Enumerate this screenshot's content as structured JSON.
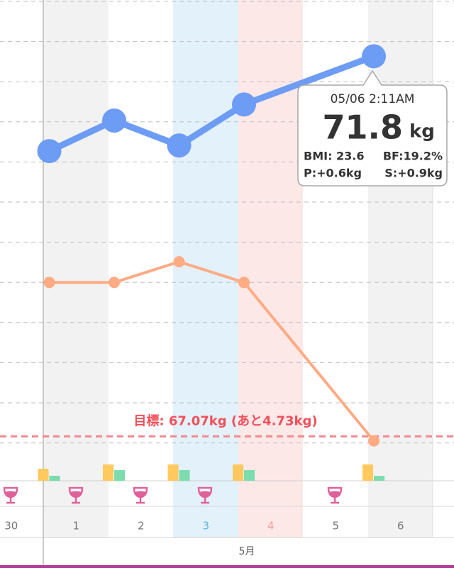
{
  "chart_data": {
    "type": "line",
    "categories": [
      "30",
      "1",
      "2",
      "3",
      "4",
      "5",
      "6"
    ],
    "month_label": "5月",
    "ylim": [
      66.5,
      72.5
    ],
    "y2lim": [
      18.6,
      25.6
    ],
    "bar_ylim": [
      0,
      30
    ],
    "series": [
      {
        "name": "weight",
        "color": "#6d9cf4",
        "x": [
          "1",
          "2",
          "3",
          "4",
          "6"
        ],
        "values": [
          70.62,
          71.0,
          70.69,
          71.2,
          71.8
        ]
      },
      {
        "name": "body fat",
        "color": "#ffab84",
        "axis": "y2",
        "x": [
          "1",
          "2",
          "3",
          "4",
          "6"
        ],
        "values": [
          21.5,
          21.5,
          21.8,
          21.5,
          19.2
        ]
      }
    ],
    "bars": [
      {
        "color": "#ffc95e",
        "x": [
          "1",
          "2",
          "3",
          "4",
          "6"
        ],
        "values": [
          17,
          23,
          23,
          23,
          23
        ]
      },
      {
        "color": "#7ddcae",
        "x": [
          "1",
          "2",
          "3",
          "4",
          "6"
        ],
        "values": [
          7,
          15,
          15,
          15,
          7
        ]
      }
    ],
    "goal": 67.07,
    "goal_label": "目標: 67.07kg (あと4.73kg)",
    "tooltip": {
      "datetime": "05/06 2:11AM",
      "weight": "71.8",
      "unit": "kg",
      "bmi": "BMI: 23.6",
      "bf": "BF:19.2%",
      "p": "P:+0.6kg",
      "s": "S:+0.9kg"
    }
  }
}
